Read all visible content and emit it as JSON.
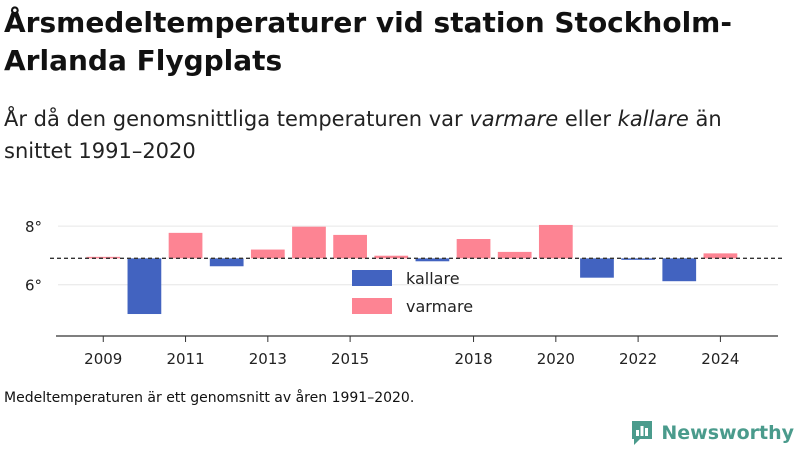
{
  "title": "Årsmedeltemperaturer vid station Stockholm-Arlanda Flygplats",
  "subtitle": {
    "part1": "År då den genomsnittliga temperaturen var ",
    "warmer": "varmare",
    "part2": " eller ",
    "colder": "kallare",
    "part3": " än snittet 1991–2020"
  },
  "footnote": "Medeltemperaturen är ett genomsnitt av åren 1991–2020.",
  "brand": {
    "name": "Newsworthy",
    "icon": "bar-chart-logo-icon"
  },
  "colors": {
    "colder": "#4263c0",
    "warmer": "#fd8493",
    "baseline": "#333333",
    "grid": "#e6e6e6",
    "axis": "#333333",
    "brand": "#4a9b8c"
  },
  "chart_data": {
    "type": "bar",
    "baseline": 6.9,
    "ylim": [
      4.25,
      8.55
    ],
    "xlim": [
      2007.9,
      2025.4
    ],
    "y_ticks": [
      {
        "value": 6,
        "label": "6°"
      },
      {
        "value": 8,
        "label": "8°"
      }
    ],
    "x_ticks": [
      2009,
      2011,
      2013,
      2015,
      2018,
      2020,
      2022,
      2024
    ],
    "legend": {
      "position": "center",
      "entries": [
        {
          "key": "colder",
          "label": "kallare"
        },
        {
          "key": "warmer",
          "label": "varmare"
        }
      ]
    },
    "grid": true,
    "years": [
      2009,
      2010,
      2011,
      2012,
      2013,
      2014,
      2015,
      2016,
      2017,
      2018,
      2019,
      2020,
      2021,
      2022,
      2023,
      2024
    ],
    "values": [
      6.95,
      5.0,
      7.77,
      6.63,
      7.2,
      7.98,
      7.7,
      6.99,
      6.8,
      7.56,
      7.12,
      8.04,
      6.24,
      6.85,
      6.12,
      7.07
    ]
  }
}
